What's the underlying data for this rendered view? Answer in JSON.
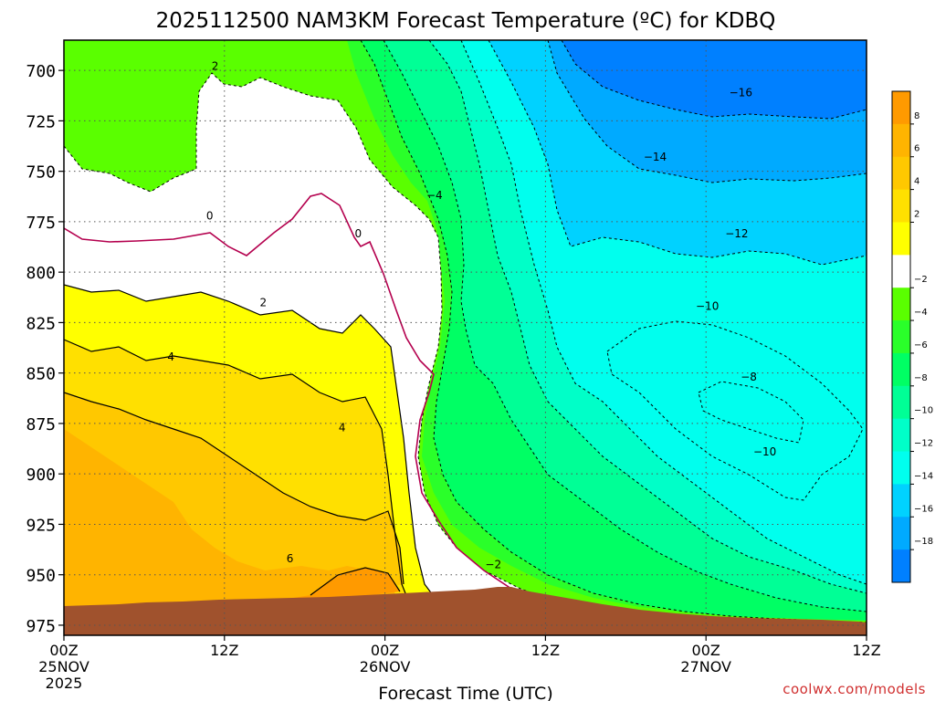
{
  "chart_data": {
    "type": "heatmap",
    "title": "2025112500 NAM3KM Forecast Temperature (ºC) for KDBQ",
    "xlabel": "Forecast Time (UTC)",
    "ylabel": "",
    "credit": "coolwx.com/models",
    "y_axis": {
      "unit": "hPa",
      "range": [
        980,
        685
      ],
      "ticks": [
        "700",
        "725",
        "750",
        "775",
        "800",
        "825",
        "850",
        "875",
        "900",
        "925",
        "950",
        "975"
      ]
    },
    "x_axis": {
      "range_hours": [
        0,
        60
      ],
      "ticks": [
        {
          "hour": 0,
          "line1": "00Z",
          "line2": "25NOV",
          "line3": "2025"
        },
        {
          "hour": 12,
          "line1": "12Z",
          "line2": "",
          "line3": ""
        },
        {
          "hour": 24,
          "line1": "00Z",
          "line2": "26NOV",
          "line3": ""
        },
        {
          "hour": 36,
          "line1": "12Z",
          "line2": "",
          "line3": ""
        },
        {
          "hour": 48,
          "line1": "00Z",
          "line2": "27NOV",
          "line3": ""
        },
        {
          "hour": 60,
          "line1": "12Z",
          "line2": "",
          "line3": ""
        }
      ]
    },
    "contour_labels": [
      {
        "text": "2",
        "hour": 11.3,
        "p": 698
      },
      {
        "text": "−16",
        "hour": 50.6,
        "p": 711
      },
      {
        "text": "−14",
        "hour": 44.2,
        "p": 743
      },
      {
        "text": "−4",
        "hour": 27.7,
        "p": 762
      },
      {
        "text": "0",
        "hour": 10.9,
        "p": 772
      },
      {
        "text": "0",
        "hour": 22.0,
        "p": 781
      },
      {
        "text": "−12",
        "hour": 50.3,
        "p": 781
      },
      {
        "text": "2",
        "hour": 14.9,
        "p": 815
      },
      {
        "text": "−10",
        "hour": 48.1,
        "p": 817
      },
      {
        "text": "4",
        "hour": 8.0,
        "p": 842
      },
      {
        "text": "−8",
        "hour": 51.2,
        "p": 852
      },
      {
        "text": "4",
        "hour": 20.8,
        "p": 877
      },
      {
        "text": "−10",
        "hour": 52.4,
        "p": 889
      },
      {
        "text": "6",
        "hour": 16.9,
        "p": 942
      },
      {
        "text": "−2",
        "hour": 32.1,
        "p": 945
      }
    ],
    "colorbar": {
      "bins": [
        {
          "color": "#ff9a00",
          "label": "8"
        },
        {
          "color": "#ffb400",
          "label": "6"
        },
        {
          "color": "#ffc800",
          "label": "4"
        },
        {
          "color": "#ffe000",
          "label": "2"
        },
        {
          "color": "#ffff00",
          "label": ""
        },
        {
          "color": "#ffffff",
          "label": "−2"
        },
        {
          "color": "#5aff00",
          "label": "−4"
        },
        {
          "color": "#2aff2a",
          "label": "−6"
        },
        {
          "color": "#00ff64",
          "label": "−8"
        },
        {
          "color": "#00ff96",
          "label": "−10"
        },
        {
          "color": "#00ffc8",
          "label": "−12"
        },
        {
          "color": "#00ffee",
          "label": "−14"
        },
        {
          "color": "#00d2ff",
          "label": "−16"
        },
        {
          "color": "#00aaff",
          "label": "−18"
        },
        {
          "color": "#0080ff",
          "label": ""
        }
      ]
    },
    "colors": {
      "ground": "#a0522d",
      "solid_contour": "#000000",
      "freezing_line": "#b4004e",
      "dashed_contour": "#202020",
      "grid": "#555555",
      "credit": "#d03030"
    }
  }
}
